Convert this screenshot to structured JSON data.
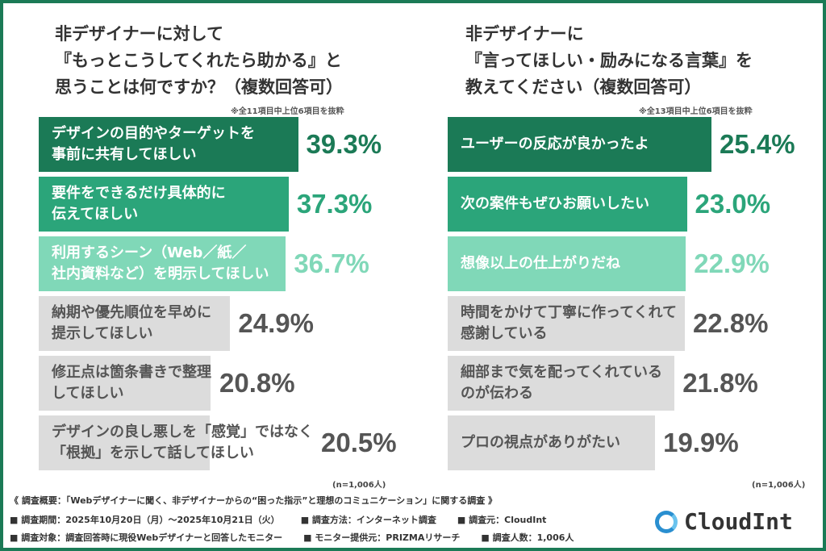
{
  "colors": {
    "rank1": "#1b7a56",
    "rank2": "#2ba57a",
    "rank3": "#80d8b8",
    "other": "#dcdcdc",
    "other_text": "#555555",
    "frame": "#1b7a56"
  },
  "chart_data": [
    {
      "type": "bar",
      "orientation": "horizontal",
      "title": "非デザイナーに対して\n『もっとこうしてくれたら助かる』と\n思うことは何ですか？（複数回答可）",
      "note": "※全11項目中上位6項目を抜粋",
      "sample": "(n=1,006人)",
      "categories": [
        "デザインの目的やターゲットを\n事前に共有してほしい",
        "要件をできるだけ具体的に\n伝えてほしい",
        "利用するシーン（Web／紙／\n社内資料など）を明示してほしい",
        "納期や優先順位を早めに\n提示してほしい",
        "修正点は箇条書きで整理\nしてほしい",
        "デザインの良し悪しを「感覚」ではなく\n「根拠」を示して話してほしい"
      ],
      "values": [
        39.3,
        37.3,
        36.7,
        24.9,
        20.8,
        20.5
      ],
      "labels": [
        "39.3%",
        "37.3%",
        "36.7%",
        "24.9%",
        "20.8%",
        "20.5%"
      ]
    },
    {
      "type": "bar",
      "orientation": "horizontal",
      "title": "非デザイナーに\n『言ってほしい・励みになる言葉』を\n教えてください（複数回答可）",
      "note": "※全13項目中上位6項目を抜粋",
      "sample": "(n=1,006人)",
      "categories": [
        "ユーザーの反応が良かったよ",
        "次の案件もぜひお願いしたい",
        "想像以上の仕上がりだね",
        "時間をかけて丁寧に作ってくれて\n感謝している",
        "細部まで気を配ってくれている\nのが伝わる",
        "プロの視点がありがたい"
      ],
      "values": [
        25.4,
        23.0,
        22.9,
        22.8,
        21.8,
        19.9
      ],
      "labels": [
        "25.4%",
        "23.0%",
        "22.9%",
        "22.8%",
        "21.8%",
        "19.9%"
      ]
    }
  ],
  "footer": {
    "line1": "《 調査概要：「Webデザイナーに聞く、非デザイナーからの“困った指示”と理想のコミュニケーション」に関する調査 》",
    "period": "■ 調査期間：2025年10月20日（月）～2025年10月21日（火）",
    "method": "■ 調査方法：インターネット調査",
    "source": "■ 調査元：CloudInt",
    "target": "■ 調査対象：調査回答時に現役Webデザイナーと回答したモニター",
    "provider": "■ モニター提供元：PRIZMAリサーチ",
    "count": "■ 調査人数：1,006人"
  },
  "logo": {
    "text": "CloudInt"
  }
}
